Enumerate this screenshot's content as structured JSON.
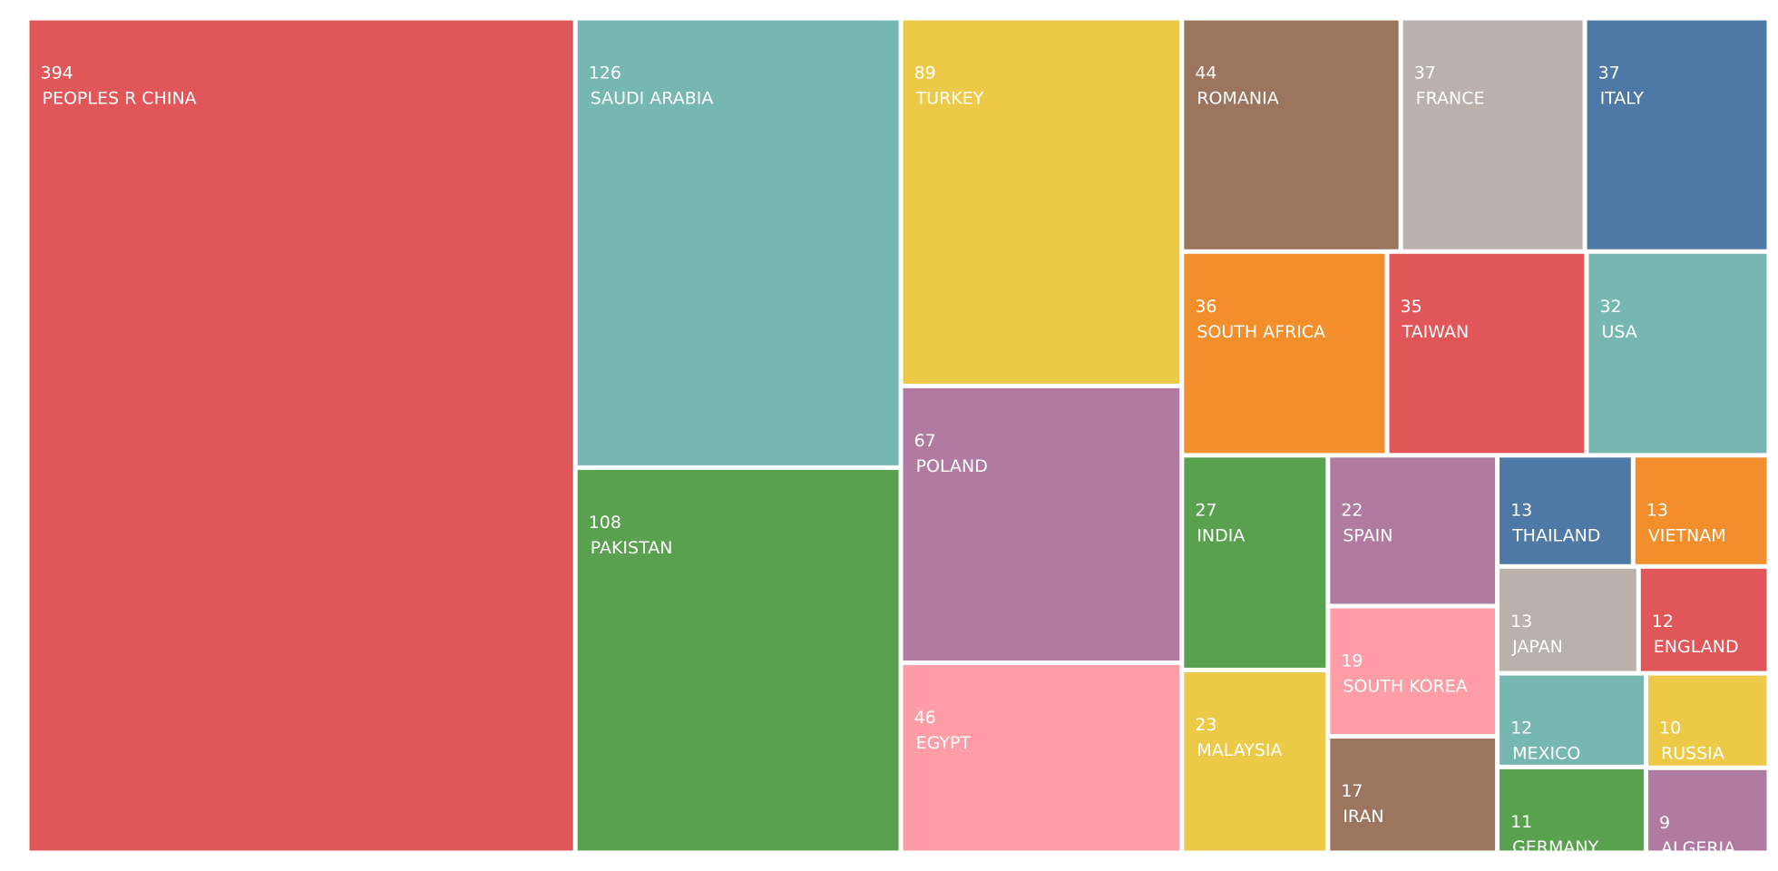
{
  "chart_data": {
    "type": "treemap",
    "categories": [
      "PEOPLES R CHINA",
      "SAUDI ARABIA",
      "PAKISTAN",
      "TURKEY",
      "POLAND",
      "EGYPT",
      "ROMANIA",
      "FRANCE",
      "ITALY",
      "SOUTH AFRICA",
      "TAIWAN",
      "USA",
      "INDIA",
      "MALAYSIA",
      "SPAIN",
      "SOUTH KOREA",
      "IRAN",
      "THAILAND",
      "VIETNAM",
      "JAPAN",
      "ENGLAND",
      "MEXICO",
      "GERMANY",
      "RUSSIA",
      "ALGERIA"
    ],
    "values": [
      394,
      126,
      108,
      89,
      67,
      46,
      44,
      37,
      37,
      36,
      35,
      32,
      27,
      23,
      22,
      19,
      17,
      13,
      13,
      13,
      12,
      12,
      11,
      10,
      9
    ],
    "colors": [
      "#e15759",
      "#76b7b2",
      "#59a14f",
      "#edc948",
      "#b07aa1",
      "#ff9da7",
      "#9c755f",
      "#bab0ac",
      "#4e79a7",
      "#f28e2b",
      "#e15759",
      "#76b7b2",
      "#59a14f",
      "#edc948",
      "#b07aa1",
      "#ff9da7",
      "#9c755f",
      "#4e79a7",
      "#f28e2b",
      "#bab0ac",
      "#e15759",
      "#76b7b2",
      "#59a14f",
      "#edc948",
      "#b07aa1"
    ]
  }
}
